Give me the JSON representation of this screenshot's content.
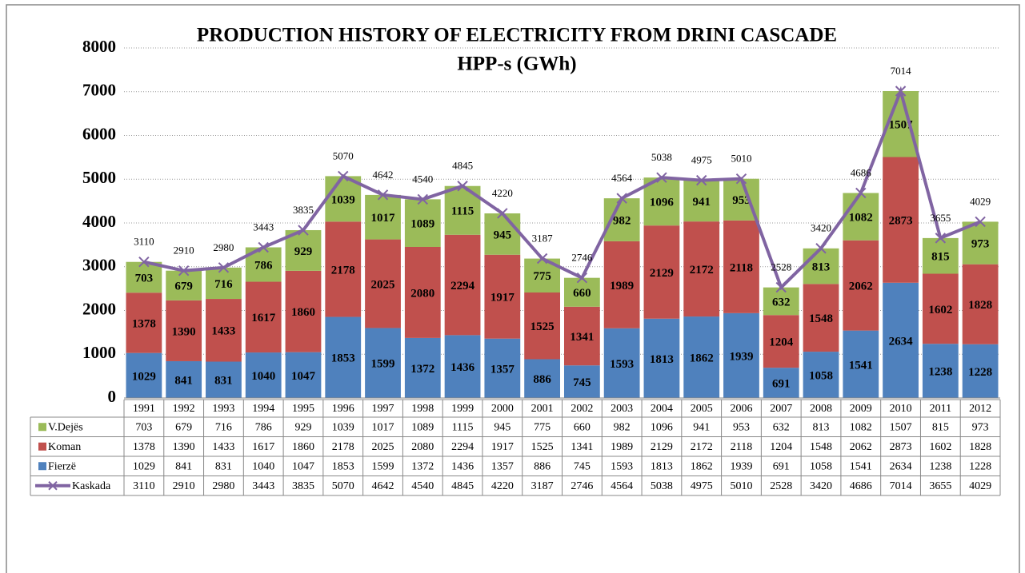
{
  "chart_data": {
    "type": "bar",
    "title": "PRODUCTION HISTORY OF ELECTRICITY FROM  DRINI CASCADE",
    "subtitle": "HPP-s (GWh)",
    "categories": [
      "1991",
      "1992",
      "1993",
      "1994",
      "1995",
      "1996",
      "1997",
      "1998",
      "1999",
      "2000",
      "2001",
      "2002",
      "2003",
      "2004",
      "2005",
      "2006",
      "2007",
      "2008",
      "2009",
      "2010",
      "2011",
      "2012"
    ],
    "stacked": true,
    "grid": true,
    "ylim": [
      0,
      8000
    ],
    "yticks": [
      0,
      1000,
      2000,
      3000,
      4000,
      5000,
      6000,
      7000,
      8000
    ],
    "series": [
      {
        "name": "V.Dejës",
        "type": "bar",
        "color": "#9bbb59",
        "values": [
          703,
          679,
          716,
          786,
          929,
          1039,
          1017,
          1089,
          1115,
          945,
          775,
          660,
          982,
          1096,
          941,
          953,
          632,
          813,
          1082,
          1507,
          815,
          973
        ]
      },
      {
        "name": "Koman",
        "type": "bar",
        "color": "#c0504d",
        "values": [
          1378,
          1390,
          1433,
          1617,
          1860,
          2178,
          2025,
          2080,
          2294,
          1917,
          1525,
          1341,
          1989,
          2129,
          2172,
          2118,
          1204,
          1548,
          2062,
          2873,
          1602,
          1828
        ]
      },
      {
        "name": "Fierzë",
        "type": "bar",
        "color": "#4f81bd",
        "values": [
          1029,
          841,
          831,
          1040,
          1047,
          1853,
          1599,
          1372,
          1436,
          1357,
          886,
          745,
          1593,
          1813,
          1862,
          1939,
          691,
          1058,
          1541,
          2634,
          1238,
          1228
        ]
      },
      {
        "name": "Kaskada",
        "type": "line",
        "color": "#8064a2",
        "values": [
          3110,
          2910,
          2980,
          3443,
          3835,
          5070,
          4642,
          4540,
          4845,
          4220,
          3187,
          2746,
          4564,
          5038,
          4975,
          5010,
          2528,
          3420,
          4686,
          7014,
          3655,
          4029
        ]
      }
    ]
  }
}
